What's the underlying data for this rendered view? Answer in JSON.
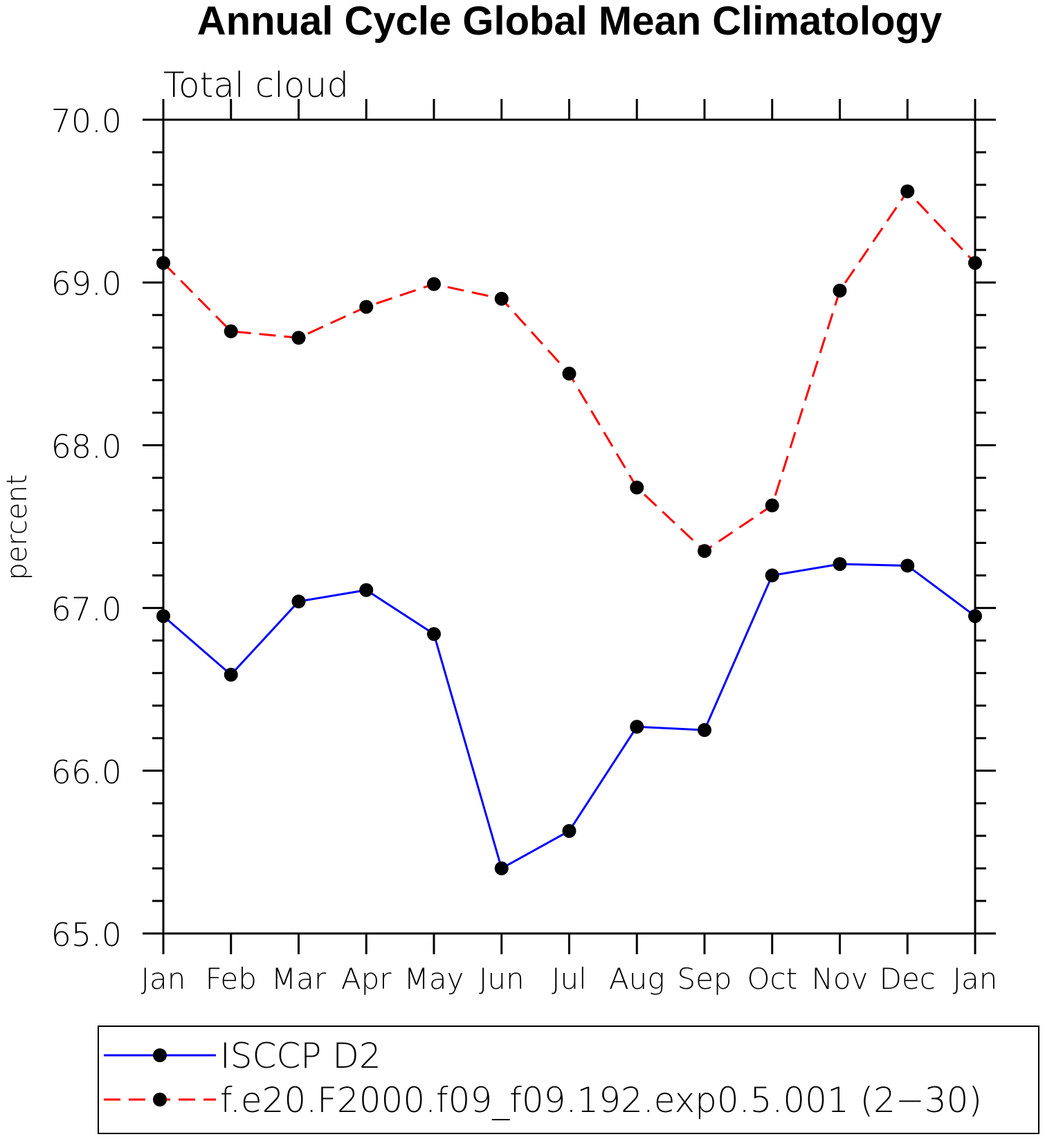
{
  "chart_data": {
    "type": "line",
    "title": "Annual Cycle Global Mean Climatology",
    "subtitle": "Total cloud",
    "ylabel": "percent",
    "xlabel": "",
    "ylim": [
      65.0,
      70.0
    ],
    "yticks": [
      "65.0",
      "66.0",
      "67.0",
      "68.0",
      "69.0",
      "70.0"
    ],
    "categories": [
      "Jan",
      "Feb",
      "Mar",
      "Apr",
      "May",
      "Jun",
      "Jul",
      "Aug",
      "Sep",
      "Oct",
      "Nov",
      "Dec",
      "Jan"
    ],
    "series": [
      {
        "name": "ISCCP D2",
        "color": "#0000ff",
        "dash": "solid",
        "marker": "filled-circle",
        "values": [
          66.95,
          66.59,
          67.04,
          67.11,
          66.84,
          65.4,
          65.63,
          66.27,
          66.25,
          67.2,
          67.27,
          67.26,
          66.95
        ]
      },
      {
        "name": "f.e20.F2000.f09_f09.192.exp0.5.001 (2−30)",
        "color": "#ff0000",
        "dash": "dashed",
        "marker": "filled-circle",
        "values": [
          69.12,
          68.7,
          68.66,
          68.85,
          68.99,
          68.9,
          68.44,
          67.74,
          67.35,
          67.63,
          68.95,
          69.56,
          69.12
        ]
      }
    ],
    "grid": false,
    "legend_position": "bottom"
  }
}
